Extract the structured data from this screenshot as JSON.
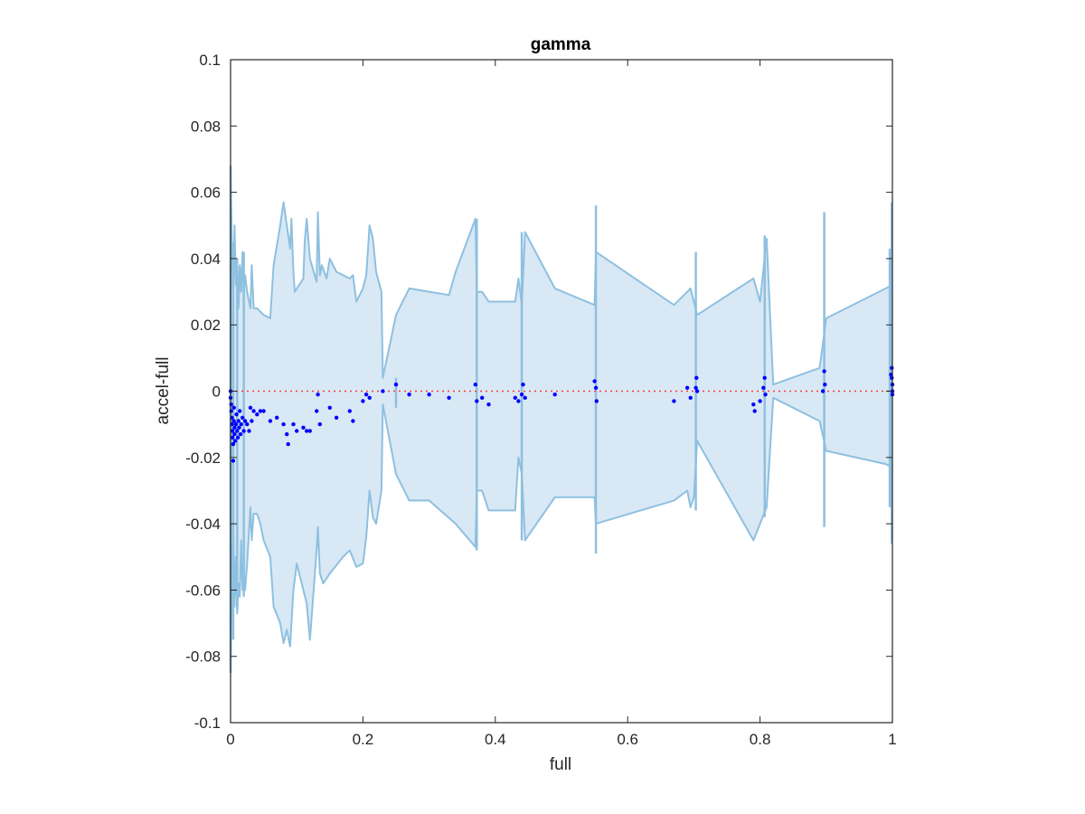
{
  "chart_data": {
    "type": "scatter",
    "title": "gamma",
    "xlabel": "full",
    "ylabel": "accel-full",
    "xlim": [
      0,
      1
    ],
    "ylim": [
      -0.1,
      0.1
    ],
    "x_ticks": [
      0,
      0.2,
      0.4,
      0.6,
      0.8,
      1
    ],
    "x_tick_labels": [
      "0",
      "0.2",
      "0.4",
      "0.6",
      "0.8",
      "1"
    ],
    "y_ticks": [
      -0.1,
      -0.08,
      -0.06,
      -0.04,
      -0.02,
      0,
      0.02,
      0.04,
      0.06,
      0.08,
      0.1
    ],
    "y_tick_labels": [
      "-0.1",
      "-0.08",
      "-0.06",
      "-0.04",
      "-0.02",
      "0",
      "0.02",
      "0.04",
      "0.06",
      "0.08",
      "0.1"
    ],
    "grid": false,
    "colors": {
      "band_fill": "#d9e8f5",
      "band_edge": "#8ec0e0",
      "points": "#0000ff",
      "zero_line": "#ff3b3b",
      "axes": "#262626"
    },
    "band": {
      "upper": [
        [
          0,
          0.068
        ],
        [
          0.002,
          0.045
        ],
        [
          0.004,
          0.03
        ],
        [
          0.006,
          0.05
        ],
        [
          0.008,
          0.032
        ],
        [
          0.01,
          0.04
        ],
        [
          0.012,
          0.025
        ],
        [
          0.014,
          0.038
        ],
        [
          0.016,
          0.03
        ],
        [
          0.018,
          0.042
        ],
        [
          0.02,
          0.03
        ],
        [
          0.022,
          0.035
        ],
        [
          0.025,
          0.03
        ],
        [
          0.03,
          0.025
        ],
        [
          0.032,
          0.038
        ],
        [
          0.035,
          0.025
        ],
        [
          0.04,
          0.025
        ],
        [
          0.045,
          0.024
        ],
        [
          0.05,
          0.023
        ],
        [
          0.06,
          0.022
        ],
        [
          0.065,
          0.038
        ],
        [
          0.075,
          0.05
        ],
        [
          0.08,
          0.057
        ],
        [
          0.085,
          0.05
        ],
        [
          0.09,
          0.043
        ],
        [
          0.092,
          0.052
        ],
        [
          0.095,
          0.036
        ],
        [
          0.097,
          0.03
        ],
        [
          0.11,
          0.034
        ],
        [
          0.112,
          0.045
        ],
        [
          0.115,
          0.052
        ],
        [
          0.12,
          0.04
        ],
        [
          0.13,
          0.033
        ],
        [
          0.132,
          0.054
        ],
        [
          0.135,
          0.035
        ],
        [
          0.138,
          0.038
        ],
        [
          0.145,
          0.034
        ],
        [
          0.15,
          0.04
        ],
        [
          0.16,
          0.036
        ],
        [
          0.17,
          0.035
        ],
        [
          0.18,
          0.034
        ],
        [
          0.185,
          0.035
        ],
        [
          0.19,
          0.027
        ],
        [
          0.2,
          0.031
        ],
        [
          0.205,
          0.035
        ],
        [
          0.21,
          0.05
        ],
        [
          0.215,
          0.046
        ],
        [
          0.22,
          0.036
        ],
        [
          0.228,
          0.03
        ],
        [
          0.23,
          0.004
        ],
        [
          0.25,
          0.023
        ],
        [
          0.27,
          0.031
        ],
        [
          0.3,
          0.03
        ],
        [
          0.33,
          0.029
        ],
        [
          0.34,
          0.036
        ],
        [
          0.37,
          0.052
        ],
        [
          0.372,
          0.03
        ],
        [
          0.38,
          0.03
        ],
        [
          0.39,
          0.027
        ],
        [
          0.43,
          0.027
        ],
        [
          0.435,
          0.034
        ],
        [
          0.44,
          0.026
        ],
        [
          0.445,
          0.048
        ],
        [
          0.49,
          0.031
        ],
        [
          0.55,
          0.026
        ],
        [
          0.552,
          0.042
        ],
        [
          0.67,
          0.026
        ],
        [
          0.69,
          0.03
        ],
        [
          0.695,
          0.031
        ],
        [
          0.7,
          0.027
        ],
        [
          0.705,
          0.023
        ],
        [
          0.79,
          0.034
        ],
        [
          0.8,
          0.027
        ],
        [
          0.81,
          0.046
        ],
        [
          0.82,
          0.002
        ],
        [
          0.89,
          0.007
        ],
        [
          0.9,
          0.022
        ],
        [
          0.99,
          0.031
        ],
        [
          1,
          0.032
        ]
      ],
      "lower": [
        [
          0,
          -0.085
        ],
        [
          0.002,
          -0.055
        ],
        [
          0.004,
          -0.04
        ],
        [
          0.006,
          -0.065
        ],
        [
          0.008,
          -0.05
        ],
        [
          0.01,
          -0.067
        ],
        [
          0.012,
          -0.058
        ],
        [
          0.014,
          -0.062
        ],
        [
          0.016,
          -0.045
        ],
        [
          0.018,
          -0.06
        ],
        [
          0.02,
          -0.055
        ],
        [
          0.022,
          -0.06
        ],
        [
          0.025,
          -0.052
        ],
        [
          0.03,
          -0.035
        ],
        [
          0.032,
          -0.045
        ],
        [
          0.035,
          -0.037
        ],
        [
          0.04,
          -0.037
        ],
        [
          0.045,
          -0.04
        ],
        [
          0.05,
          -0.045
        ],
        [
          0.06,
          -0.05
        ],
        [
          0.065,
          -0.065
        ],
        [
          0.075,
          -0.07
        ],
        [
          0.08,
          -0.076
        ],
        [
          0.085,
          -0.072
        ],
        [
          0.09,
          -0.077
        ],
        [
          0.092,
          -0.07
        ],
        [
          0.095,
          -0.06
        ],
        [
          0.1,
          -0.052
        ],
        [
          0.11,
          -0.06
        ],
        [
          0.115,
          -0.064
        ],
        [
          0.12,
          -0.075
        ],
        [
          0.13,
          -0.048
        ],
        [
          0.132,
          -0.041
        ],
        [
          0.135,
          -0.055
        ],
        [
          0.14,
          -0.058
        ],
        [
          0.15,
          -0.055
        ],
        [
          0.17,
          -0.05
        ],
        [
          0.18,
          -0.048
        ],
        [
          0.19,
          -0.053
        ],
        [
          0.2,
          -0.052
        ],
        [
          0.205,
          -0.044
        ],
        [
          0.21,
          -0.03
        ],
        [
          0.215,
          -0.038
        ],
        [
          0.22,
          -0.04
        ],
        [
          0.228,
          -0.03
        ],
        [
          0.23,
          -0.004
        ],
        [
          0.25,
          -0.025
        ],
        [
          0.27,
          -0.033
        ],
        [
          0.3,
          -0.033
        ],
        [
          0.34,
          -0.04
        ],
        [
          0.37,
          -0.047
        ],
        [
          0.372,
          -0.03
        ],
        [
          0.38,
          -0.03
        ],
        [
          0.39,
          -0.036
        ],
        [
          0.43,
          -0.036
        ],
        [
          0.435,
          -0.02
        ],
        [
          0.44,
          -0.025
        ],
        [
          0.445,
          -0.045
        ],
        [
          0.49,
          -0.032
        ],
        [
          0.55,
          -0.032
        ],
        [
          0.552,
          -0.04
        ],
        [
          0.67,
          -0.033
        ],
        [
          0.69,
          -0.03
        ],
        [
          0.695,
          -0.035
        ],
        [
          0.7,
          -0.032
        ],
        [
          0.705,
          -0.015
        ],
        [
          0.79,
          -0.045
        ],
        [
          0.8,
          -0.04
        ],
        [
          0.81,
          -0.035
        ],
        [
          0.82,
          -0.002
        ],
        [
          0.89,
          -0.009
        ],
        [
          0.9,
          -0.018
        ],
        [
          0.99,
          -0.022
        ],
        [
          1,
          -0.023
        ]
      ],
      "spikes": [
        [
          0,
          -0.085,
          0.068
        ],
        [
          0.004,
          -0.075,
          0.045
        ],
        [
          0.01,
          -0.066,
          0.04
        ],
        [
          0.02,
          -0.062,
          0.042
        ],
        [
          0.25,
          -0.005,
          0.004
        ],
        [
          0.372,
          -0.048,
          0.052
        ],
        [
          0.44,
          -0.045,
          0.048
        ],
        [
          0.552,
          -0.049,
          0.056
        ],
        [
          0.703,
          -0.036,
          0.042
        ],
        [
          0.807,
          -0.038,
          0.047
        ],
        [
          0.897,
          -0.041,
          0.054
        ],
        [
          0.999,
          -0.046,
          0.057
        ],
        [
          0.996,
          -0.035,
          0.043
        ]
      ]
    },
    "series": [
      {
        "points": [
          [
            0,
            0
          ],
          [
            0,
            -0.002
          ],
          [
            0.001,
            -0.004
          ],
          [
            0.001,
            -0.006
          ],
          [
            0.002,
            -0.008
          ],
          [
            0.002,
            -0.01
          ],
          [
            0.003,
            -0.012
          ],
          [
            0.003,
            -0.014
          ],
          [
            0.004,
            -0.016
          ],
          [
            0.004,
            -0.021
          ],
          [
            0.005,
            -0.005
          ],
          [
            0.005,
            -0.009
          ],
          [
            0.006,
            -0.011
          ],
          [
            0.006,
            -0.013
          ],
          [
            0.007,
            -0.015
          ],
          [
            0.008,
            -0.01
          ],
          [
            0.009,
            -0.007
          ],
          [
            0.01,
            -0.012
          ],
          [
            0.011,
            -0.014
          ],
          [
            0.012,
            -0.009
          ],
          [
            0.013,
            -0.011
          ],
          [
            0.014,
            -0.006
          ],
          [
            0.015,
            -0.013
          ],
          [
            0.016,
            -0.01
          ],
          [
            0.018,
            -0.008
          ],
          [
            0.02,
            -0.012
          ],
          [
            0.022,
            -0.009
          ],
          [
            0.025,
            -0.01
          ],
          [
            0.028,
            -0.012
          ],
          [
            0.03,
            -0.005
          ],
          [
            0.032,
            -0.009
          ],
          [
            0.035,
            -0.006
          ],
          [
            0.04,
            -0.007
          ],
          [
            0.045,
            -0.006
          ],
          [
            0.05,
            -0.006
          ],
          [
            0.06,
            -0.009
          ],
          [
            0.07,
            -0.008
          ],
          [
            0.08,
            -0.01
          ],
          [
            0.085,
            -0.013
          ],
          [
            0.087,
            -0.016
          ],
          [
            0.095,
            -0.01
          ],
          [
            0.1,
            -0.012
          ],
          [
            0.11,
            -0.011
          ],
          [
            0.115,
            -0.012
          ],
          [
            0.12,
            -0.012
          ],
          [
            0.13,
            -0.006
          ],
          [
            0.132,
            -0.001
          ],
          [
            0.135,
            -0.01
          ],
          [
            0.15,
            -0.005
          ],
          [
            0.16,
            -0.008
          ],
          [
            0.18,
            -0.006
          ],
          [
            0.185,
            -0.009
          ],
          [
            0.2,
            -0.003
          ],
          [
            0.205,
            -0.001
          ],
          [
            0.21,
            -0.002
          ],
          [
            0.23,
            0
          ],
          [
            0.25,
            0.002
          ],
          [
            0.27,
            -0.001
          ],
          [
            0.3,
            -0.001
          ],
          [
            0.33,
            -0.002
          ],
          [
            0.37,
            0.002
          ],
          [
            0.372,
            -0.003
          ],
          [
            0.38,
            -0.002
          ],
          [
            0.39,
            -0.004
          ],
          [
            0.43,
            -0.002
          ],
          [
            0.435,
            -0.003
          ],
          [
            0.44,
            -0.001
          ],
          [
            0.442,
            0.002
          ],
          [
            0.445,
            -0.002
          ],
          [
            0.49,
            -0.001
          ],
          [
            0.55,
            0.003
          ],
          [
            0.552,
            0.001
          ],
          [
            0.553,
            -0.003
          ],
          [
            0.67,
            -0.003
          ],
          [
            0.69,
            0.001
          ],
          [
            0.695,
            -0.002
          ],
          [
            0.703,
            0.001
          ],
          [
            0.704,
            0.004
          ],
          [
            0.705,
            0
          ],
          [
            0.79,
            -0.004
          ],
          [
            0.792,
            -0.006
          ],
          [
            0.8,
            -0.003
          ],
          [
            0.805,
            0.001
          ],
          [
            0.807,
            0.004
          ],
          [
            0.808,
            -0.001
          ],
          [
            0.895,
            0
          ],
          [
            0.897,
            0.006
          ],
          [
            0.898,
            0.002
          ],
          [
            0.999,
            0.007
          ],
          [
            0.999,
            0.004
          ],
          [
            1,
            0.002
          ],
          [
            1,
            0
          ],
          [
            1,
            -0.001
          ],
          [
            0.998,
            0.005
          ]
        ]
      }
    ],
    "reference_line": {
      "y": 0,
      "style": "dotted"
    }
  }
}
